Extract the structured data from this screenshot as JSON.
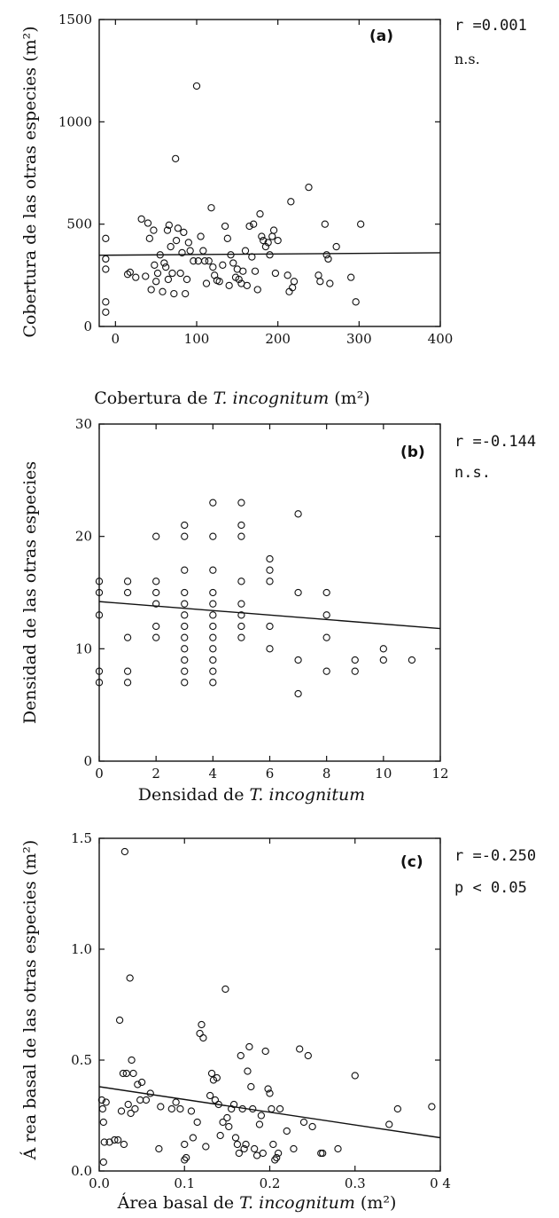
{
  "colors": {
    "ink": "#111111",
    "background": "#ffffff"
  },
  "chart_data": [
    {
      "type": "scatter",
      "panel_label": "(a)",
      "stat_r": "r =0.001",
      "stat_sig": "n.s.",
      "ylabel": "Cobertura de las otras especies (m²)",
      "xlabel_prefix": "Cobertura de ",
      "xlabel_italic": "T. incognitum",
      "xlabel_suffix": " (m²)",
      "xlim": [
        -20,
        400
      ],
      "ylim": [
        0,
        1500
      ],
      "xticks": [
        0,
        100,
        200,
        300,
        400
      ],
      "xtick_labels": [
        "0",
        "100",
        "200",
        "300",
        "400"
      ],
      "yticks": [
        0,
        500,
        1000,
        1500
      ],
      "ytick_labels": [
        "0",
        "500",
        "1000",
        "1500"
      ],
      "regression": {
        "x": [
          -20,
          400
        ],
        "y": [
          348,
          360
        ]
      },
      "points": [
        [
          -12,
          430
        ],
        [
          -12,
          330
        ],
        [
          -12,
          280
        ],
        [
          -12,
          120
        ],
        [
          -12,
          70
        ],
        [
          15,
          255
        ],
        [
          18,
          265
        ],
        [
          25,
          240
        ],
        [
          32,
          525
        ],
        [
          37,
          245
        ],
        [
          40,
          505
        ],
        [
          42,
          430
        ],
        [
          44,
          180
        ],
        [
          47,
          470
        ],
        [
          48,
          300
        ],
        [
          50,
          220
        ],
        [
          52,
          260
        ],
        [
          55,
          350
        ],
        [
          58,
          170
        ],
        [
          60,
          310
        ],
        [
          62,
          290
        ],
        [
          64,
          470
        ],
        [
          65,
          230
        ],
        [
          66,
          495
        ],
        [
          68,
          390
        ],
        [
          70,
          260
        ],
        [
          72,
          160
        ],
        [
          74,
          820
        ],
        [
          75,
          420
        ],
        [
          77,
          480
        ],
        [
          80,
          260
        ],
        [
          82,
          360
        ],
        [
          84,
          460
        ],
        [
          86,
          160
        ],
        [
          88,
          230
        ],
        [
          90,
          410
        ],
        [
          92,
          370
        ],
        [
          96,
          320
        ],
        [
          100,
          1175
        ],
        [
          102,
          320
        ],
        [
          105,
          440
        ],
        [
          108,
          370
        ],
        [
          110,
          320
        ],
        [
          112,
          210
        ],
        [
          115,
          320
        ],
        [
          118,
          580
        ],
        [
          120,
          290
        ],
        [
          122,
          250
        ],
        [
          125,
          225
        ],
        [
          128,
          220
        ],
        [
          132,
          300
        ],
        [
          135,
          490
        ],
        [
          138,
          430
        ],
        [
          140,
          200
        ],
        [
          142,
          350
        ],
        [
          145,
          310
        ],
        [
          148,
          240
        ],
        [
          150,
          280
        ],
        [
          152,
          230
        ],
        [
          155,
          210
        ],
        [
          157,
          270
        ],
        [
          160,
          370
        ],
        [
          162,
          200
        ],
        [
          165,
          490
        ],
        [
          168,
          340
        ],
        [
          170,
          500
        ],
        [
          172,
          270
        ],
        [
          175,
          180
        ],
        [
          178,
          550
        ],
        [
          180,
          440
        ],
        [
          182,
          420
        ],
        [
          185,
          390
        ],
        [
          188,
          410
        ],
        [
          190,
          350
        ],
        [
          193,
          440
        ],
        [
          195,
          470
        ],
        [
          197,
          260
        ],
        [
          200,
          420
        ],
        [
          212,
          250
        ],
        [
          214,
          170
        ],
        [
          216,
          610
        ],
        [
          218,
          190
        ],
        [
          220,
          220
        ],
        [
          238,
          680
        ],
        [
          250,
          250
        ],
        [
          252,
          220
        ],
        [
          258,
          500
        ],
        [
          260,
          350
        ],
        [
          262,
          330
        ],
        [
          264,
          210
        ],
        [
          272,
          390
        ],
        [
          290,
          240
        ],
        [
          296,
          120
        ],
        [
          302,
          500
        ]
      ]
    },
    {
      "type": "scatter",
      "panel_label": "(b)",
      "stat_r": "r =-0.144",
      "stat_sig": "n.s.",
      "ylabel": "Densidad  de las otras especies",
      "xlabel_prefix": "Densidad de ",
      "xlabel_italic": "T. incognitum",
      "xlabel_suffix": "",
      "xlim": [
        0,
        12
      ],
      "ylim": [
        0,
        30
      ],
      "xticks": [
        0,
        2,
        4,
        6,
        8,
        10,
        12
      ],
      "xtick_labels": [
        "0",
        "2",
        "4",
        "6",
        "8",
        "10",
        "12"
      ],
      "yticks": [
        0,
        10,
        20,
        30
      ],
      "ytick_labels": [
        "0",
        "10",
        "20",
        "30"
      ],
      "regression": {
        "x": [
          0,
          12
        ],
        "y": [
          14.2,
          11.8
        ]
      },
      "points": [
        [
          0,
          16
        ],
        [
          0,
          15
        ],
        [
          0,
          13
        ],
        [
          0,
          8
        ],
        [
          0,
          7
        ],
        [
          1,
          16
        ],
        [
          1,
          15
        ],
        [
          1,
          11
        ],
        [
          1,
          8
        ],
        [
          1,
          7
        ],
        [
          2,
          20
        ],
        [
          2,
          16
        ],
        [
          2,
          15
        ],
        [
          2,
          14
        ],
        [
          2,
          12
        ],
        [
          2,
          11
        ],
        [
          3,
          21
        ],
        [
          3,
          20
        ],
        [
          3,
          17
        ],
        [
          3,
          15
        ],
        [
          3,
          14
        ],
        [
          3,
          13
        ],
        [
          3,
          12
        ],
        [
          3,
          11
        ],
        [
          3,
          10
        ],
        [
          3,
          9
        ],
        [
          3,
          8
        ],
        [
          3,
          7
        ],
        [
          4,
          23
        ],
        [
          4,
          20
        ],
        [
          4,
          17
        ],
        [
          4,
          15
        ],
        [
          4,
          14
        ],
        [
          4,
          13
        ],
        [
          4,
          12
        ],
        [
          4,
          11
        ],
        [
          4,
          10
        ],
        [
          4,
          9
        ],
        [
          4,
          8
        ],
        [
          4,
          7
        ],
        [
          5,
          23
        ],
        [
          5,
          21
        ],
        [
          5,
          20
        ],
        [
          5,
          16
        ],
        [
          5,
          14
        ],
        [
          5,
          13
        ],
        [
          5,
          12
        ],
        [
          5,
          11
        ],
        [
          6,
          18
        ],
        [
          6,
          17
        ],
        [
          6,
          16
        ],
        [
          6,
          12
        ],
        [
          6,
          10
        ],
        [
          7,
          22
        ],
        [
          7,
          15
        ],
        [
          7,
          9
        ],
        [
          7,
          6
        ],
        [
          8,
          15
        ],
        [
          8,
          13
        ],
        [
          8,
          11
        ],
        [
          8,
          8
        ],
        [
          9,
          9
        ],
        [
          9,
          8
        ],
        [
          10,
          10
        ],
        [
          10,
          9
        ],
        [
          11,
          9
        ]
      ]
    },
    {
      "type": "scatter",
      "panel_label": "(c)",
      "stat_r": "r =-0.250",
      "stat_sig": "p < 0.05",
      "ylabel": "Á rea basal de las otras especies (m²)",
      "xlabel_prefix": "Área basal de ",
      "xlabel_italic": "T. incognitum",
      "xlabel_suffix": " (m²)",
      "xlim": [
        0,
        0.4
      ],
      "ylim": [
        0,
        1.5
      ],
      "xticks": [
        0,
        0.1,
        0.2,
        0.3,
        0.4
      ],
      "xtick_labels": [
        "0.0",
        "0.1",
        "0.2",
        "0.3",
        "0 4"
      ],
      "yticks": [
        0,
        0.5,
        1.0,
        1.5
      ],
      "ytick_labels": [
        "0.0",
        "0.5",
        "1.0",
        "1.5"
      ],
      "regression": {
        "x": [
          0,
          0.4
        ],
        "y": [
          0.38,
          0.15
        ]
      },
      "points": [
        [
          0.003,
          0.32
        ],
        [
          0.004,
          0.28
        ],
        [
          0.005,
          0.22
        ],
        [
          0.006,
          0.13
        ],
        [
          0.005,
          0.04
        ],
        [
          0.008,
          0.31
        ],
        [
          0.012,
          0.13
        ],
        [
          0.018,
          0.14
        ],
        [
          0.022,
          0.14
        ],
        [
          0.024,
          0.68
        ],
        [
          0.026,
          0.27
        ],
        [
          0.028,
          0.44
        ],
        [
          0.029,
          0.12
        ],
        [
          0.03,
          1.44
        ],
        [
          0.032,
          0.44
        ],
        [
          0.034,
          0.3
        ],
        [
          0.036,
          0.87
        ],
        [
          0.037,
          0.26
        ],
        [
          0.038,
          0.5
        ],
        [
          0.04,
          0.44
        ],
        [
          0.042,
          0.28
        ],
        [
          0.045,
          0.39
        ],
        [
          0.048,
          0.32
        ],
        [
          0.05,
          0.4
        ],
        [
          0.055,
          0.32
        ],
        [
          0.06,
          0.35
        ],
        [
          0.07,
          0.1
        ],
        [
          0.072,
          0.29
        ],
        [
          0.085,
          0.28
        ],
        [
          0.09,
          0.31
        ],
        [
          0.095,
          0.28
        ],
        [
          0.1,
          0.12
        ],
        [
          0.1,
          0.05
        ],
        [
          0.102,
          0.06
        ],
        [
          0.108,
          0.27
        ],
        [
          0.11,
          0.15
        ],
        [
          0.115,
          0.22
        ],
        [
          0.118,
          0.62
        ],
        [
          0.12,
          0.66
        ],
        [
          0.122,
          0.6
        ],
        [
          0.125,
          0.11
        ],
        [
          0.13,
          0.34
        ],
        [
          0.132,
          0.44
        ],
        [
          0.134,
          0.41
        ],
        [
          0.136,
          0.32
        ],
        [
          0.138,
          0.42
        ],
        [
          0.14,
          0.3
        ],
        [
          0.142,
          0.16
        ],
        [
          0.145,
          0.22
        ],
        [
          0.148,
          0.82
        ],
        [
          0.15,
          0.24
        ],
        [
          0.152,
          0.2
        ],
        [
          0.155,
          0.28
        ],
        [
          0.158,
          0.3
        ],
        [
          0.16,
          0.15
        ],
        [
          0.162,
          0.12
        ],
        [
          0.164,
          0.08
        ],
        [
          0.166,
          0.52
        ],
        [
          0.168,
          0.28
        ],
        [
          0.17,
          0.1
        ],
        [
          0.172,
          0.12
        ],
        [
          0.174,
          0.45
        ],
        [
          0.176,
          0.56
        ],
        [
          0.178,
          0.38
        ],
        [
          0.18,
          0.28
        ],
        [
          0.182,
          0.1
        ],
        [
          0.185,
          0.07
        ],
        [
          0.188,
          0.21
        ],
        [
          0.19,
          0.25
        ],
        [
          0.192,
          0.08
        ],
        [
          0.195,
          0.54
        ],
        [
          0.198,
          0.37
        ],
        [
          0.2,
          0.35
        ],
        [
          0.202,
          0.28
        ],
        [
          0.204,
          0.12
        ],
        [
          0.206,
          0.05
        ],
        [
          0.208,
          0.06
        ],
        [
          0.21,
          0.08
        ],
        [
          0.212,
          0.28
        ],
        [
          0.22,
          0.18
        ],
        [
          0.228,
          0.1
        ],
        [
          0.235,
          0.55
        ],
        [
          0.24,
          0.22
        ],
        [
          0.245,
          0.52
        ],
        [
          0.25,
          0.2
        ],
        [
          0.26,
          0.08
        ],
        [
          0.262,
          0.08
        ],
        [
          0.28,
          0.1
        ],
        [
          0.3,
          0.43
        ],
        [
          0.34,
          0.21
        ],
        [
          0.35,
          0.28
        ],
        [
          0.39,
          0.29
        ]
      ]
    }
  ]
}
